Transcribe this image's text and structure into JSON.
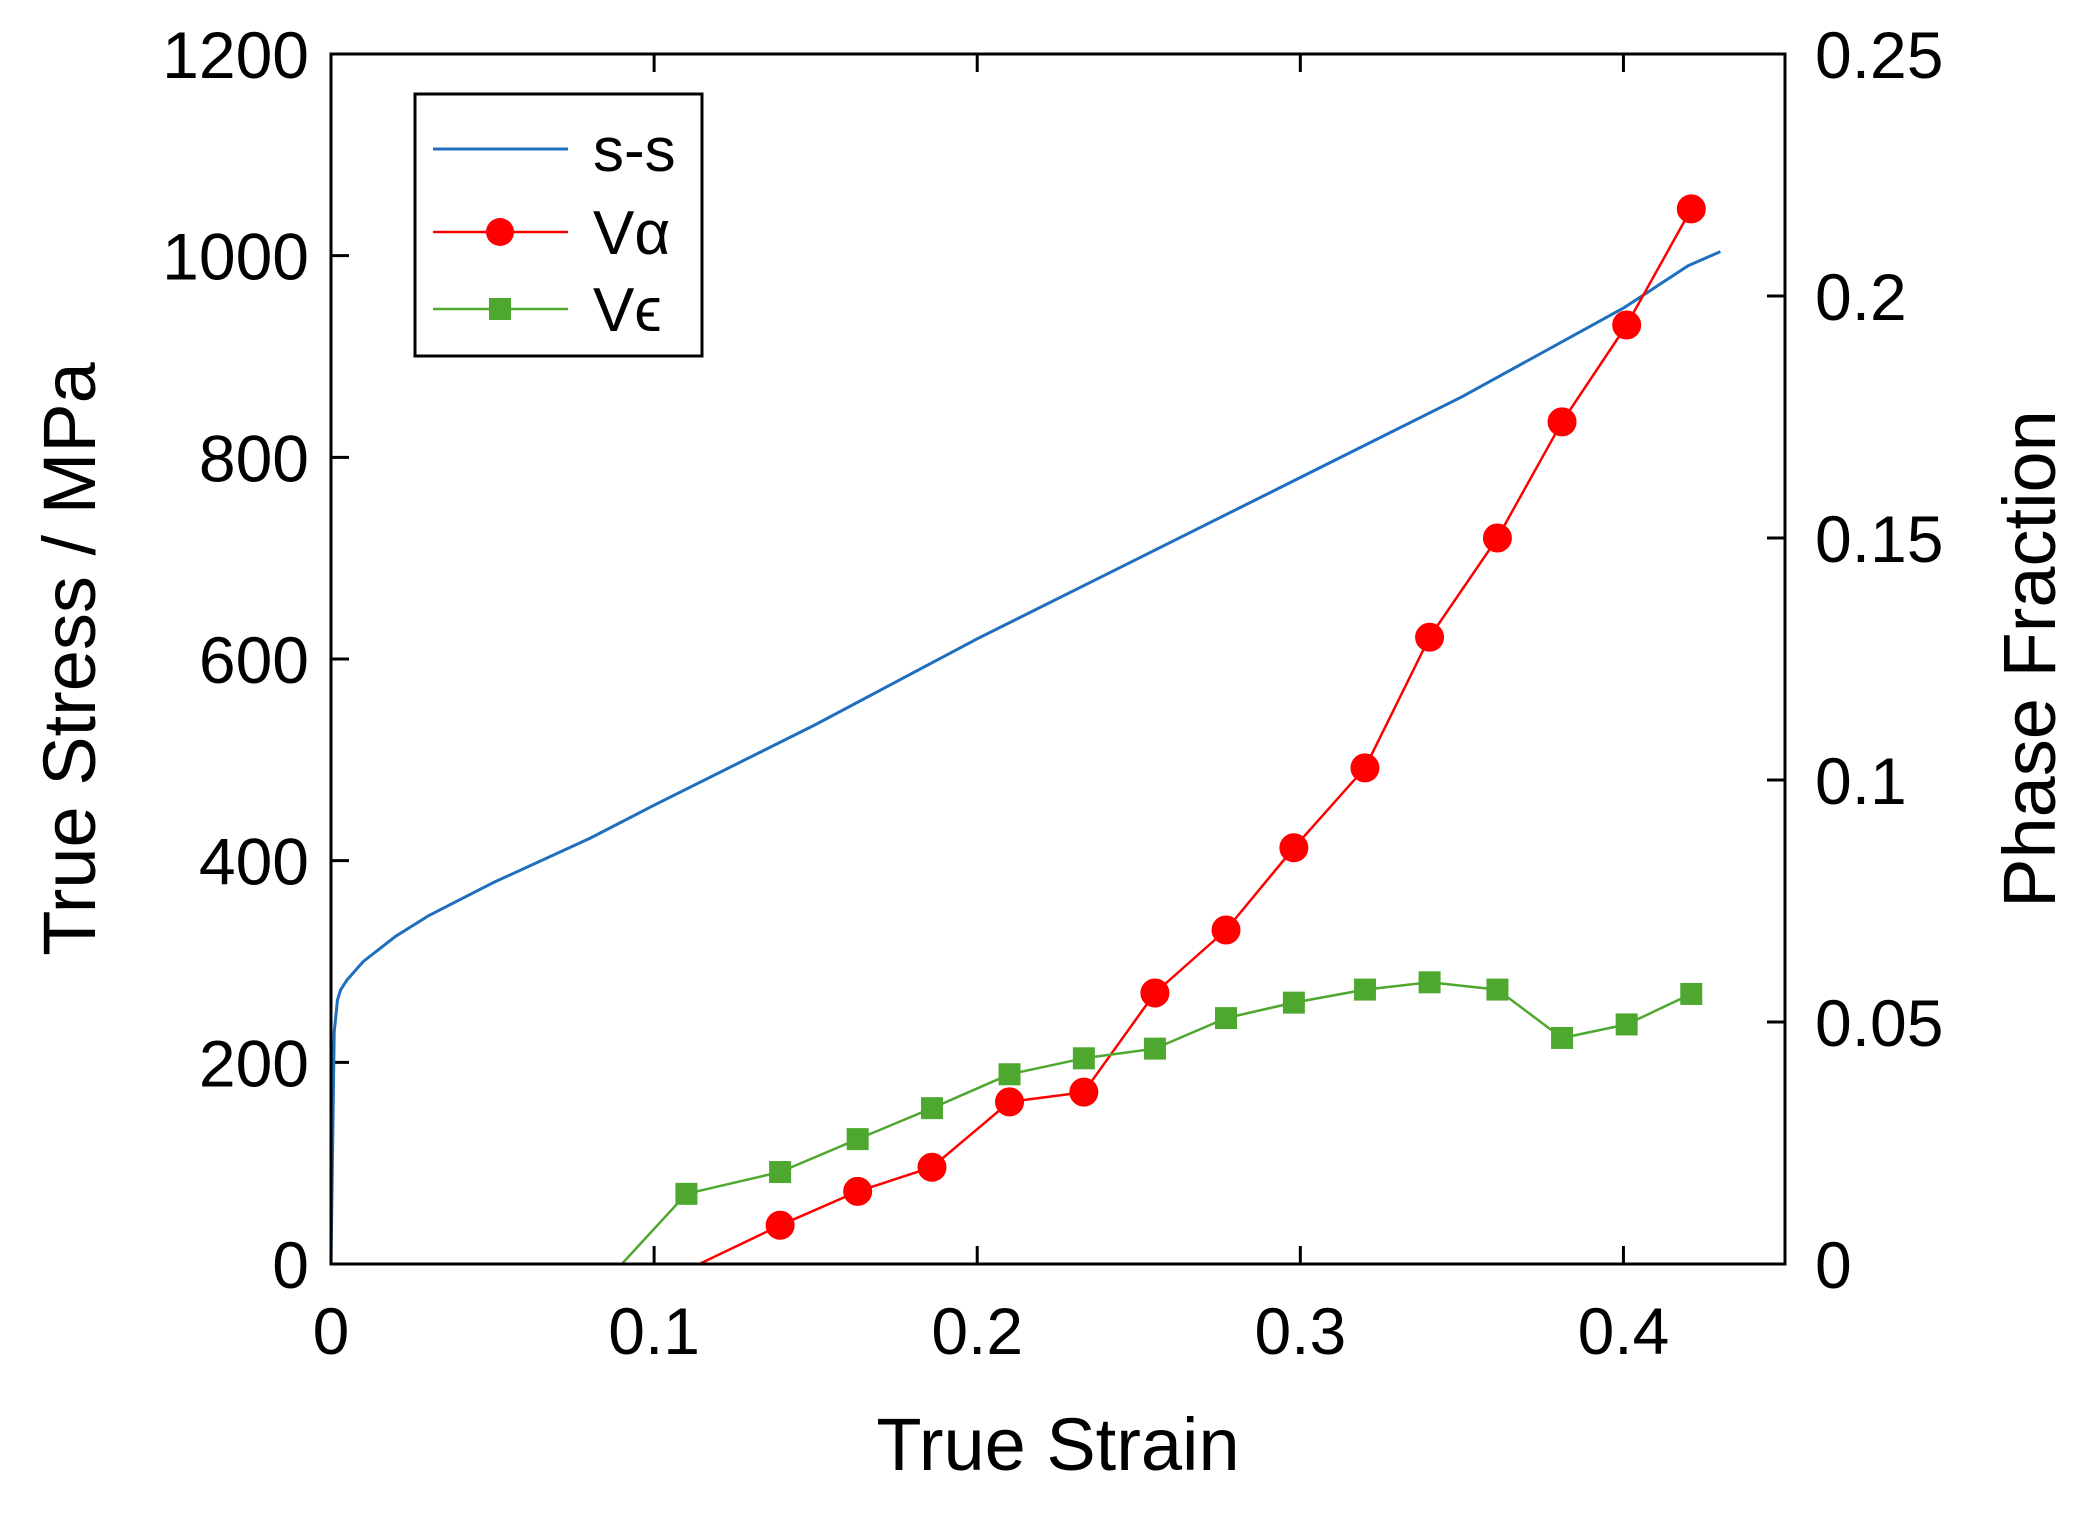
{
  "chart_data": {
    "type": "line",
    "xlabel": "True Strain",
    "ylabel_left": "True Stress / MPa",
    "ylabel_right": "Phase Fraction",
    "xlim": [
      0,
      0.45
    ],
    "ylim_left": [
      0,
      1200
    ],
    "ylim_right": [
      0,
      0.25
    ],
    "x_ticks": [
      0,
      0.1,
      0.2,
      0.3,
      0.4
    ],
    "x_tick_labels": [
      "0",
      "0.1",
      "0.2",
      "0.3",
      "0.4"
    ],
    "y_left_ticks": [
      0,
      200,
      400,
      600,
      800,
      1000,
      1200
    ],
    "y_left_tick_labels": [
      "0",
      "200",
      "400",
      "600",
      "800",
      "1000",
      "1200"
    ],
    "y_right_ticks": [
      0,
      0.05,
      0.1,
      0.15,
      0.2,
      0.25
    ],
    "y_right_tick_labels": [
      "0",
      "0.05",
      "0.1",
      "0.15",
      "0.2",
      "0.25"
    ],
    "grid": false,
    "legend_position": "top-left",
    "series": [
      {
        "name": "s-s",
        "axis": "left",
        "color": "#1f6fbf",
        "marker": "none",
        "x": [
          0,
          0.001,
          0.002,
          0.003,
          0.005,
          0.01,
          0.02,
          0.03,
          0.05,
          0.08,
          0.1,
          0.15,
          0.2,
          0.25,
          0.3,
          0.35,
          0.4,
          0.42,
          0.43
        ],
        "y": [
          0,
          230,
          262,
          272,
          282,
          300,
          325,
          345,
          378,
          422,
          455,
          535,
          620,
          700,
          780,
          860,
          948,
          990,
          1004
        ]
      },
      {
        "name": "Vα",
        "axis": "right",
        "color": "#ff0000",
        "marker": "circle",
        "x": [
          0,
          0.114,
          0.139,
          0.163,
          0.186,
          0.21,
          0.233,
          0.255,
          0.277,
          0.298,
          0.32,
          0.34,
          0.361,
          0.381,
          0.401,
          0.421
        ],
        "y": [
          0,
          0,
          0.008,
          0.015,
          0.02,
          0.0335,
          0.0355,
          0.056,
          0.069,
          0.086,
          0.1025,
          0.1295,
          0.15,
          0.174,
          0.194,
          0.218
        ]
      },
      {
        "name": "Vϵ",
        "axis": "right",
        "color": "#4ea72e",
        "marker": "square",
        "x": [
          0,
          0.09,
          0.11,
          0.139,
          0.163,
          0.186,
          0.21,
          0.233,
          0.255,
          0.277,
          0.298,
          0.32,
          0.34,
          0.361,
          0.381,
          0.401,
          0.421
        ],
        "y": [
          0,
          0,
          0.0145,
          0.019,
          0.0258,
          0.0322,
          0.0392,
          0.0425,
          0.0445,
          0.0508,
          0.054,
          0.0567,
          0.0582,
          0.0567,
          0.0467,
          0.0495,
          0.0558
        ]
      }
    ]
  }
}
